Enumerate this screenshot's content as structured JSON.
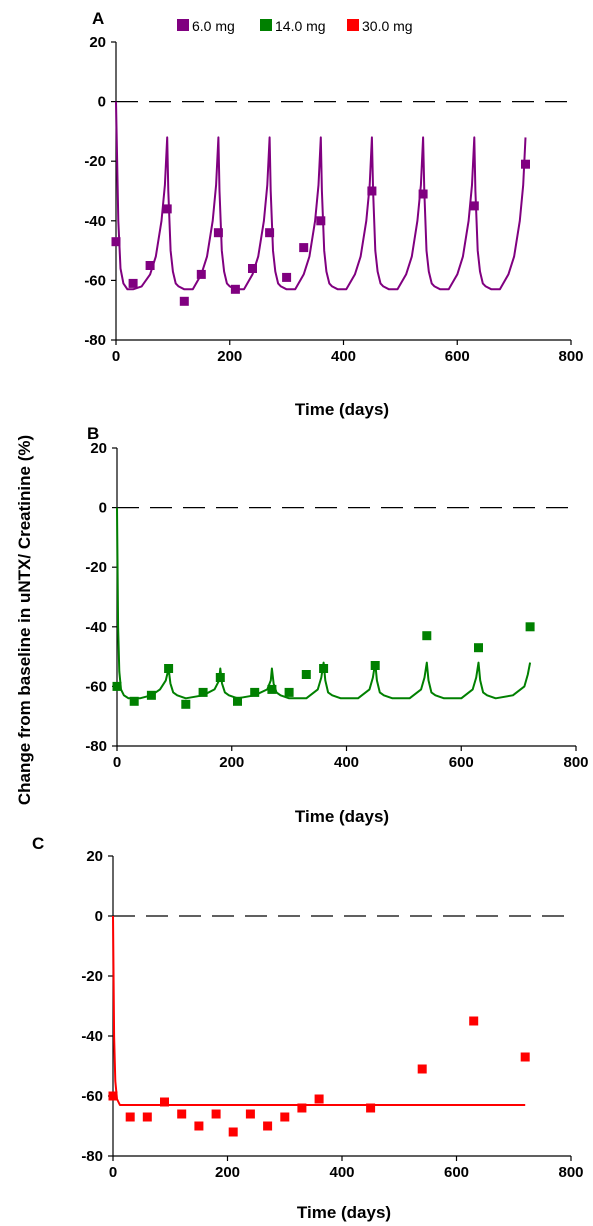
{
  "ylabel": "Change from baseline in uNTX/ Creatinine (%)",
  "legend": [
    {
      "label": "6.0 mg",
      "color": "#800080"
    },
    {
      "label": "14.0 mg",
      "color": "#008000"
    },
    {
      "label": "30.0 mg",
      "color": "#ff0000"
    }
  ],
  "chart_data": [
    {
      "type": "line",
      "panel_label": "A",
      "xlabel": "Time (days)",
      "xlim": [
        0,
        800
      ],
      "ylim": [
        -80,
        20
      ],
      "xticks": [
        0,
        200,
        400,
        600,
        800
      ],
      "yticks": [
        20,
        0,
        -20,
        -40,
        -60,
        -80
      ],
      "reference_line": 0,
      "color": "#800080",
      "series": [
        {
          "name": "6.0 mg",
          "kind": "observed",
          "x": [
            0,
            30,
            60,
            90,
            120,
            150,
            180,
            210,
            240,
            270,
            300,
            330,
            360,
            450,
            540,
            630,
            720
          ],
          "y": [
            -47,
            -61,
            -55,
            -36,
            -67,
            -58,
            -44,
            -63,
            -56,
            -44,
            -59,
            -49,
            -40,
            -30,
            -31,
            -35,
            -21
          ]
        },
        {
          "kind": "model",
          "x": [
            0,
            4,
            8,
            13,
            20,
            30,
            45,
            60,
            70,
            80,
            86,
            90,
            92,
            96,
            100,
            105,
            110,
            120,
            135,
            150,
            160,
            170,
            176,
            180,
            182,
            186,
            190,
            195,
            200,
            210,
            225,
            240,
            250,
            260,
            266,
            270,
            272,
            276,
            280,
            285,
            290,
            300,
            315,
            330,
            340,
            350,
            356,
            360,
            362,
            366,
            370,
            375,
            380,
            390,
            405,
            420,
            430,
            440,
            446,
            450,
            452,
            456,
            460,
            465,
            470,
            480,
            495,
            510,
            520,
            530,
            536,
            540,
            542,
            546,
            550,
            555,
            560,
            570,
            585,
            600,
            610,
            620,
            626,
            630,
            632,
            636,
            640,
            645,
            650,
            660,
            675,
            690,
            700,
            710,
            716,
            720
          ],
          "y": [
            0,
            -40,
            -56,
            -61,
            -63,
            -63,
            -62,
            -58,
            -52,
            -40,
            -28,
            -12,
            -30,
            -50,
            -57,
            -61,
            -62,
            -63,
            -63,
            -58,
            -52,
            -40,
            -28,
            -12,
            -30,
            -50,
            -57,
            -61,
            -62,
            -63,
            -63,
            -58,
            -52,
            -40,
            -28,
            -12,
            -30,
            -50,
            -57,
            -61,
            -62,
            -63,
            -63,
            -58,
            -52,
            -40,
            -28,
            -12,
            -30,
            -50,
            -57,
            -61,
            -62,
            -63,
            -63,
            -58,
            -52,
            -40,
            -28,
            -12,
            -30,
            -50,
            -57,
            -61,
            -62,
            -63,
            -63,
            -58,
            -52,
            -40,
            -28,
            -12,
            -30,
            -50,
            -57,
            -61,
            -62,
            -63,
            -63,
            -58,
            -52,
            -40,
            -28,
            -12,
            -30,
            -50,
            -57,
            -61,
            -62,
            -63,
            -63,
            -58,
            -52,
            -40,
            -28,
            -12
          ]
        }
      ]
    },
    {
      "type": "line",
      "panel_label": "B",
      "xlabel": "Time (days)",
      "xlim": [
        0,
        800
      ],
      "ylim": [
        -80,
        20
      ],
      "xticks": [
        0,
        200,
        400,
        600,
        800
      ],
      "yticks": [
        20,
        0,
        -20,
        -40,
        -60,
        -80
      ],
      "reference_line": 0,
      "color": "#008000",
      "series": [
        {
          "name": "14.0 mg",
          "kind": "observed",
          "x": [
            0,
            30,
            60,
            90,
            120,
            150,
            180,
            210,
            240,
            270,
            300,
            330,
            360,
            450,
            540,
            630,
            720
          ],
          "y": [
            -60,
            -65,
            -63,
            -54,
            -66,
            -62,
            -57,
            -65,
            -62,
            -61,
            -62,
            -56,
            -54,
            -53,
            -43,
            -47,
            -40
          ]
        },
        {
          "kind": "model",
          "x": [
            0,
            2,
            4,
            7,
            12,
            20,
            40,
            60,
            75,
            85,
            90,
            93,
            98,
            105,
            120,
            150,
            170,
            178,
            180,
            183,
            188,
            195,
            210,
            240,
            262,
            268,
            270,
            273,
            278,
            285,
            300,
            330,
            350,
            356,
            360,
            363,
            368,
            375,
            390,
            420,
            440,
            446,
            450,
            453,
            458,
            465,
            480,
            510,
            530,
            536,
            540,
            543,
            548,
            555,
            570,
            600,
            620,
            626,
            630,
            633,
            638,
            645,
            660,
            690,
            710,
            716,
            720
          ],
          "y": [
            0,
            -40,
            -55,
            -61,
            -63,
            -64,
            -64,
            -63,
            -61,
            -58,
            -54,
            -59,
            -62,
            -63,
            -64,
            -63,
            -61,
            -58,
            -54,
            -59,
            -62,
            -63,
            -64,
            -63,
            -61,
            -58,
            -54,
            -59,
            -62,
            -63,
            -64,
            -64,
            -61,
            -57,
            -52,
            -58,
            -62,
            -63,
            -64,
            -64,
            -61,
            -57,
            -52,
            -58,
            -62,
            -63,
            -64,
            -64,
            -61,
            -57,
            -52,
            -58,
            -62,
            -63,
            -64,
            -64,
            -61,
            -57,
            -52,
            -58,
            -62,
            -63,
            -64,
            -63,
            -60,
            -56,
            -52
          ]
        }
      ]
    },
    {
      "type": "line",
      "panel_label": "C",
      "xlabel": "Time (days)",
      "xlim": [
        0,
        800
      ],
      "ylim": [
        -80,
        20
      ],
      "xticks": [
        0,
        200,
        400,
        600,
        800
      ],
      "yticks": [
        20,
        0,
        -20,
        -40,
        -60,
        -80
      ],
      "reference_line": 0,
      "color": "#ff0000",
      "series": [
        {
          "name": "30.0 mg",
          "kind": "observed",
          "x": [
            0,
            30,
            60,
            90,
            120,
            150,
            180,
            210,
            240,
            270,
            300,
            330,
            360,
            450,
            540,
            630,
            720
          ],
          "y": [
            -60,
            -67,
            -67,
            -62,
            -66,
            -70,
            -66,
            -72,
            -66,
            -70,
            -67,
            -64,
            -61,
            -64,
            -51,
            -35,
            -47
          ]
        },
        {
          "kind": "model",
          "x": [
            0,
            2,
            4,
            7,
            12,
            20,
            40,
            90,
            150,
            200,
            300,
            400,
            500,
            600,
            650,
            720
          ],
          "y": [
            0,
            -40,
            -55,
            -61,
            -63,
            -63,
            -63,
            -63,
            -63,
            -63,
            -63,
            -63,
            -63,
            -63,
            -63,
            -63
          ]
        }
      ]
    }
  ]
}
